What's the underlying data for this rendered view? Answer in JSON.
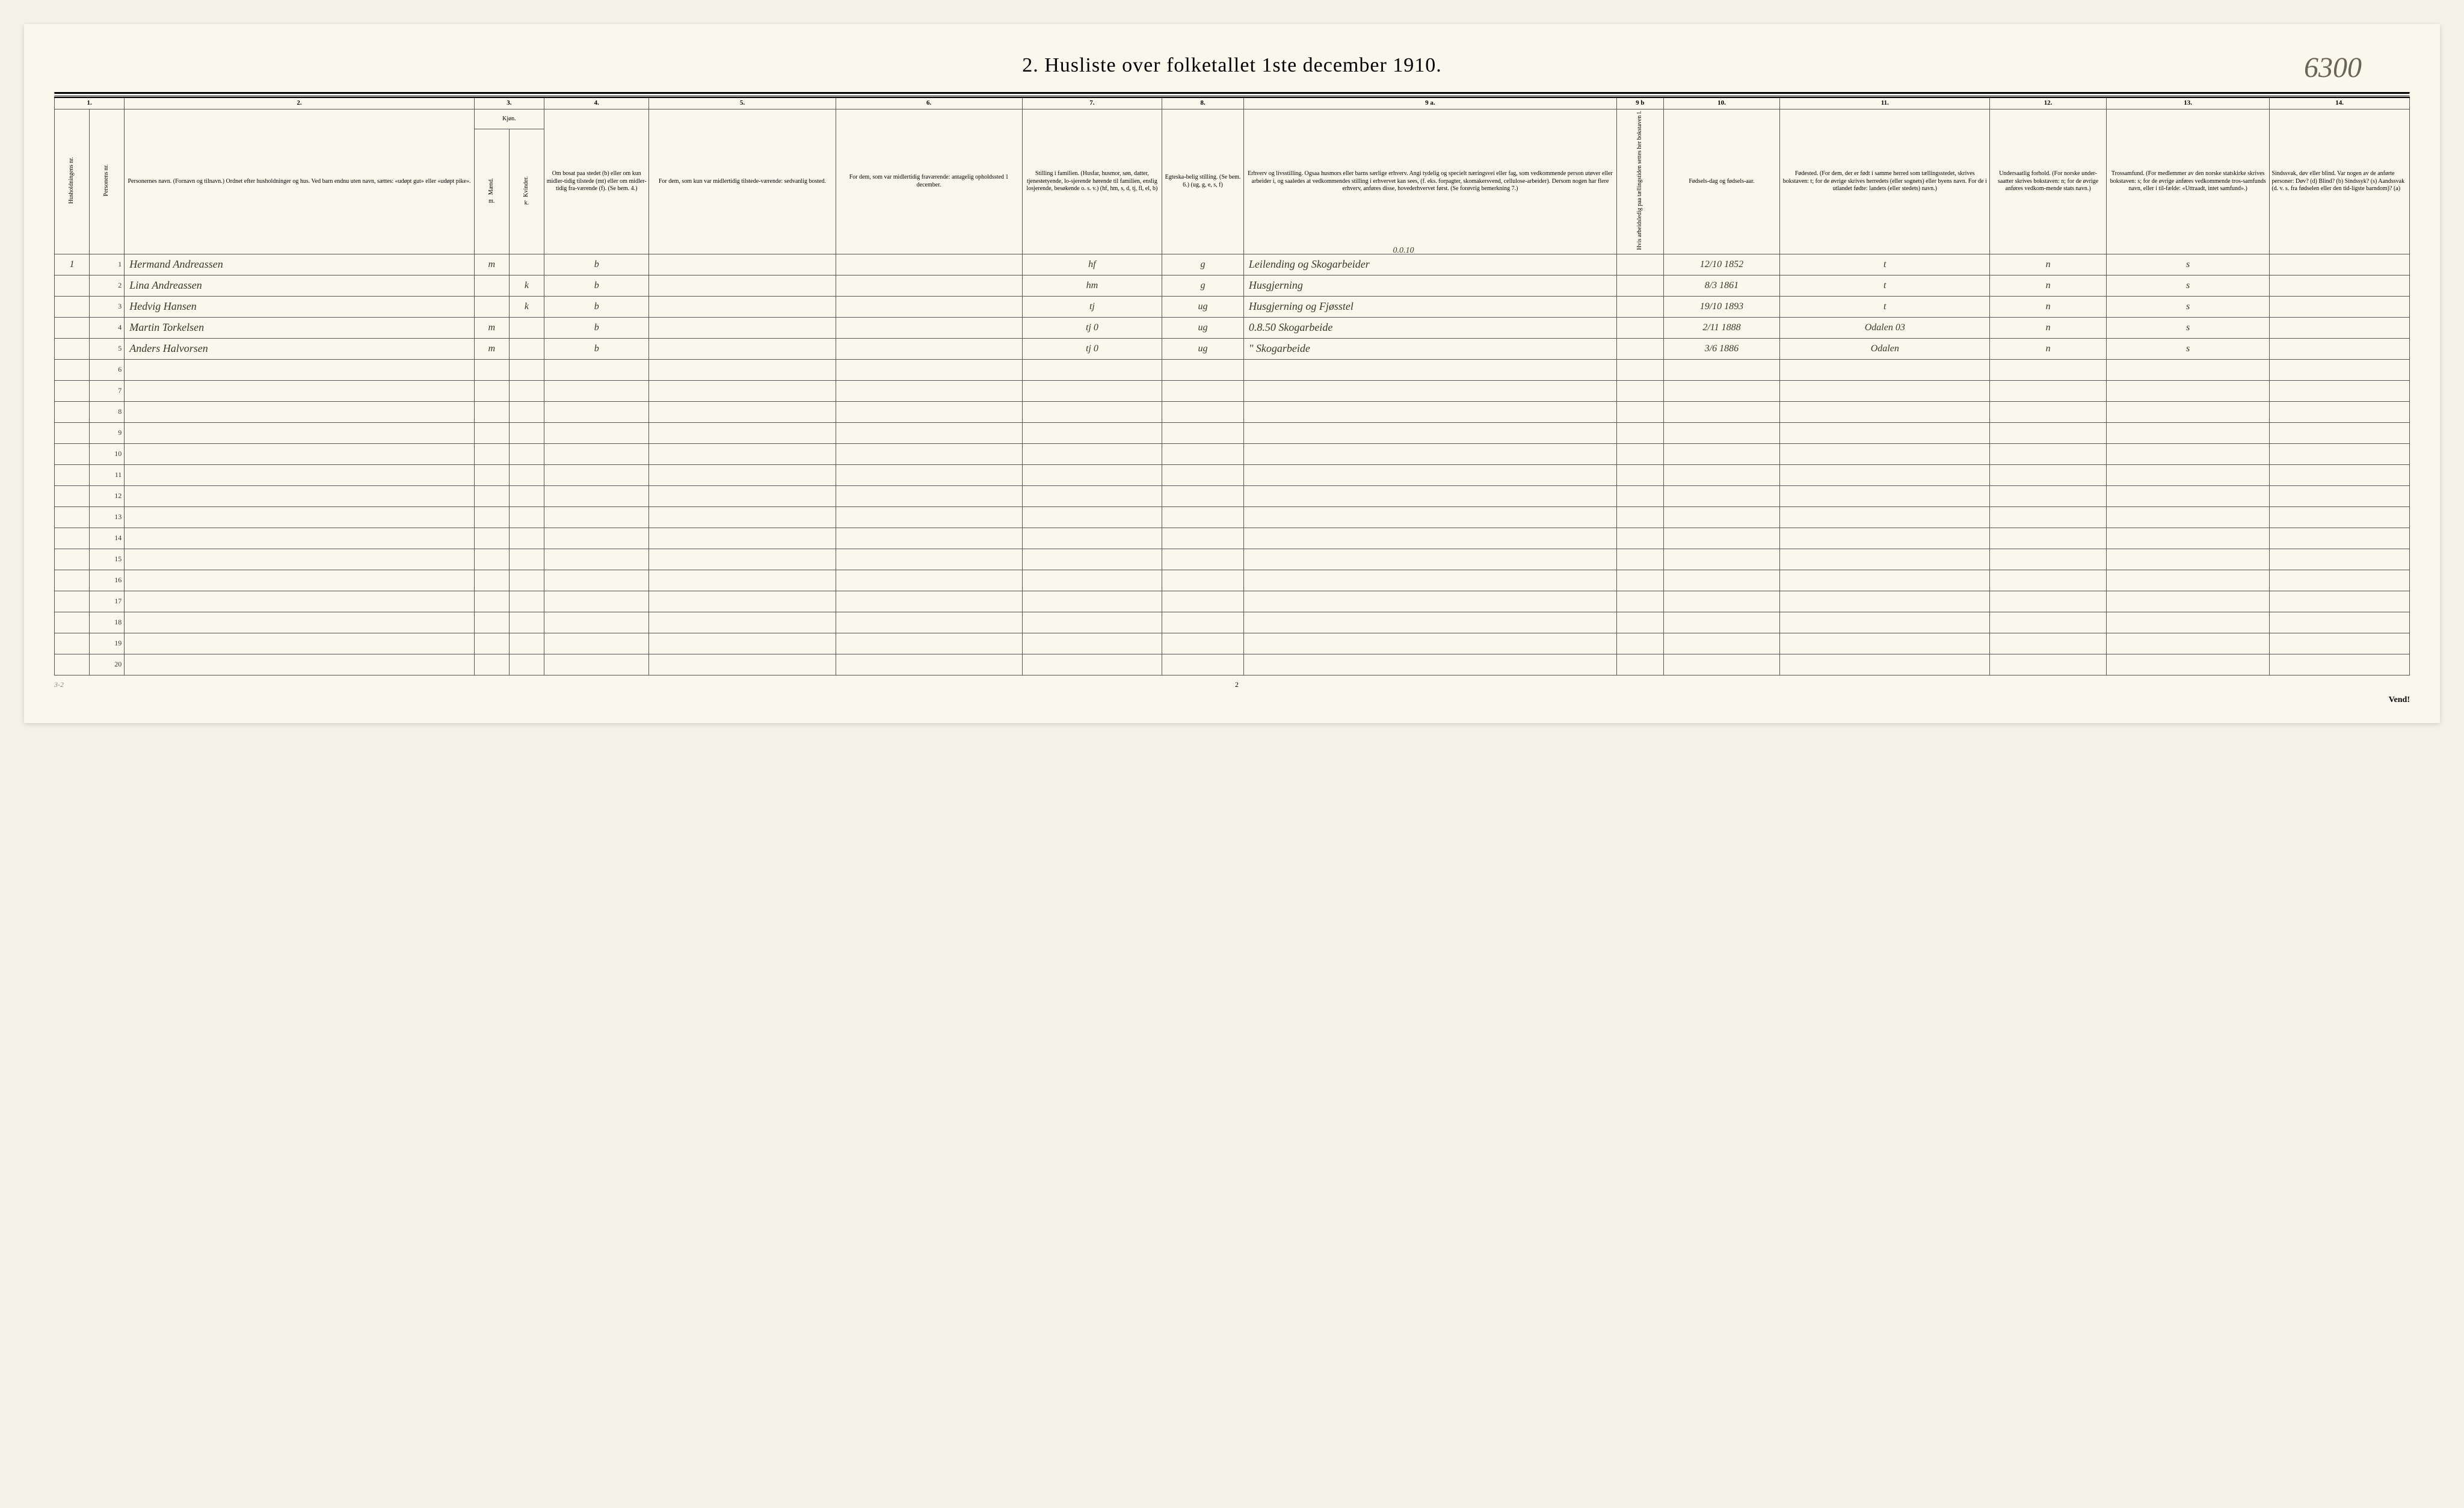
{
  "title": "2.  Husliste over folketallet 1ste december 1910.",
  "handwritten_corner": "6300",
  "column_numbers": [
    "1.",
    "2.",
    "3.",
    "4.",
    "5.",
    "6.",
    "7.",
    "8.",
    "9 a.",
    "9 b",
    "10.",
    "11.",
    "12.",
    "13.",
    "14."
  ],
  "headers": {
    "c1a": "Husholdningens nr.",
    "c1b": "Personens nr.",
    "c2": "Personernes navn.\n(Fornavn og tilnavn.)\nOrdnet efter husholdninger og hus.\nVed barn endnu uten navn, sættes: «udøpt gut»\neller «udøpt pike».",
    "c3": "Kjøn.",
    "c3a": "Mænd.",
    "c3b": "Kvinder.",
    "c4": "Om bosat paa stedet (b) eller om kun midler-tidig tilstede (mt) eller om midler-tidig fra-værende (f).\n(Se bem. 4.)",
    "c5": "For dem, som kun var midlertidig tilstede-værende:\n\nsedvanlig bosted.",
    "c6": "For dem, som var midlertidig fraværende:\n\nantagelig opholdssted 1 december.",
    "c7": "Stilling i familien.\n(Husfar, husmor, søn, datter, tjenestetyende, lo-sjerende hørende til familien, enslig losjerende, besøkende o. s. v.)\n(hf, hm, s, d, tj, fl, el, b)",
    "c8": "Egteska-belig stilling.\n(Se bem. 6.)\n(ug, g, e, s, f)",
    "c9a": "Erhverv og livsstilling.\nOgsaa husmors eller barns særlige erhverv.\nAngi tydelig og specielt næringsvei eller fag, som vedkommende person utøver eller arbeider i, og saaledes at vedkommendes stilling i erhvervet kan sees, (f. eks. forpagter, skomakersvend, cellulose-arbeider). Dersom nogen har flere erhverv, anføres disse, hovederhvervet først.\n(Se forøvrig bemerkning 7.)",
    "c9b": "Hvis arbeidsledig paa tællingstiden settes her bokstaven l.",
    "c10": "Fødsels-dag og fødsels-aar.",
    "c11": "Fødested.\n(For dem, der er født i samme herred som tællingsstedet, skrives bokstaven: t; for de øvrige skrives herredets (eller sognets) eller byens navn.\nFor de i utlandet fødte: landets (eller stedets) navn.)",
    "c12": "Undersaatlig forhold.\n(For norske under-saatter skrives bokstaven: n; for de øvrige anføres vedkom-mende stats navn.)",
    "c13": "Trossamfund.\n(For medlemmer av den norske statskirke skrives bokstaven: s; for de øvrige anføres vedkommende tros-samfunds navn, eller i til-fælde: «Uttraadt, intet samfund».)",
    "c14": "Sindssvak, døv eller blind.\nVar nogen av de anførte personer:\nDøv?      (d)\nBlind?    (b)\nSindssyk? (s)\nAandssvak (d. v. s. fra fødselen eller den tid-ligste barndom)?  (a)"
  },
  "note_row1": "0.0.10",
  "rows": [
    {
      "hh": "1",
      "pn": "1",
      "name": "Hermand Andreassen",
      "m": "m",
      "k": "",
      "res": "b",
      "c5": "",
      "c6": "",
      "fam": "hf",
      "eg": "g",
      "erhverv": "Leilending og Skogarbeider",
      "c9b": "",
      "dob": "12/10 1852",
      "fsted": "t",
      "und": "n",
      "tro": "s",
      "c14": ""
    },
    {
      "hh": "",
      "pn": "2",
      "name": "Lina Andreassen",
      "m": "",
      "k": "k",
      "res": "b",
      "c5": "",
      "c6": "",
      "fam": "hm",
      "eg": "g",
      "erhverv": "Husgjerning",
      "c9b": "",
      "dob": "8/3 1861",
      "fsted": "t",
      "und": "n",
      "tro": "s",
      "c14": ""
    },
    {
      "hh": "",
      "pn": "3",
      "name": "Hedvig Hansen",
      "m": "",
      "k": "k",
      "res": "b",
      "c5": "",
      "c6": "",
      "fam": "tj",
      "eg": "ug",
      "erhverv": "Husgjerning og Fjøsstel",
      "c9b": "",
      "dob": "19/10 1893",
      "fsted": "t",
      "und": "n",
      "tro": "s",
      "c14": ""
    },
    {
      "hh": "",
      "pn": "4",
      "name": "Martin Torkelsen",
      "m": "m",
      "k": "",
      "res": "b",
      "c5": "",
      "c6": "",
      "fam": "tj   0",
      "eg": "ug",
      "erhverv": "0.8.50 Skogarbeide",
      "c9b": "",
      "dob": "2/11 1888",
      "fsted": "Odalen 03",
      "und": "n",
      "tro": "s",
      "c14": ""
    },
    {
      "hh": "",
      "pn": "5",
      "name": "Anders Halvorsen",
      "m": "m",
      "k": "",
      "res": "b",
      "c5": "",
      "c6": "",
      "fam": "tj   0",
      "eg": "ug",
      "erhverv": "\"  Skogarbeide",
      "c9b": "",
      "dob": "3/6 1886",
      "fsted": "Odalen",
      "und": "n",
      "tro": "s",
      "c14": ""
    }
  ],
  "empty_rows": [
    "6",
    "7",
    "8",
    "9",
    "10",
    "11",
    "12",
    "13",
    "14",
    "15",
    "16",
    "17",
    "18",
    "19",
    "20"
  ],
  "footer_left": "3-2",
  "footer_center": "2",
  "vend": "Vend!",
  "col_widths_pct": [
    1.5,
    1.5,
    15,
    1.5,
    1.5,
    4.5,
    8,
    8,
    6,
    3.5,
    16,
    2,
    5,
    9,
    5,
    7,
    6
  ],
  "colors": {
    "paper": "#faf7ed",
    "grid": "#555555",
    "ink": "#3a3628",
    "print": "#000000"
  }
}
